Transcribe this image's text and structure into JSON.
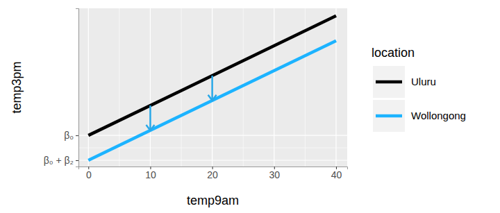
{
  "chart_data": {
    "type": "line",
    "x_label": "temp9am",
    "y_label": "temp3pm",
    "x": [
      0,
      40
    ],
    "series": [
      {
        "name": "Uluru",
        "color": "#000000",
        "values": [
          10,
          19.6
        ]
      },
      {
        "name": "Wollongong",
        "color": "#1CB3FF",
        "values": [
          8,
          17.6
        ]
      }
    ],
    "arrows": {
      "x": [
        10,
        20
      ],
      "from": [
        12.4,
        14.8
      ],
      "to": [
        10.4,
        12.8
      ],
      "color": "#29A8E8"
    },
    "xlim": [
      -1.6,
      41.8
    ],
    "xticks": [
      0,
      10,
      20,
      30,
      40
    ],
    "ylim": [
      7.5,
      20.2
    ],
    "yticks": [
      {
        "value": 8,
        "label": "β₀ + β₂"
      },
      {
        "value": 10,
        "label": "β₀"
      }
    ],
    "grid": true,
    "legend": "right",
    "legend_title": "location"
  }
}
